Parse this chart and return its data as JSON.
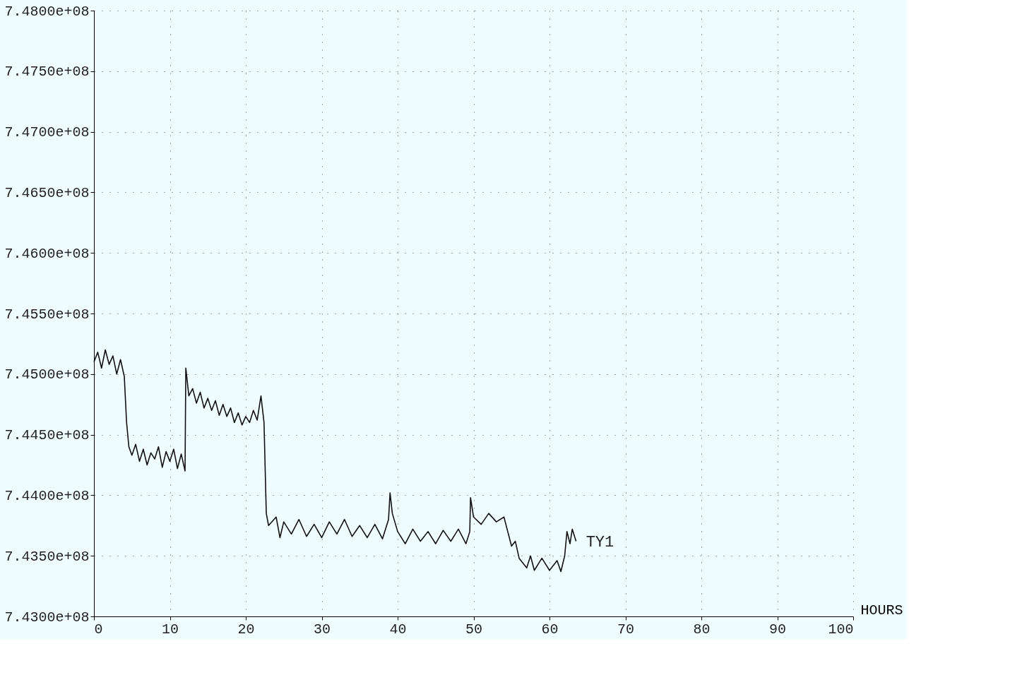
{
  "chart_data": {
    "type": "line",
    "xlabel": "HOURS",
    "xlim": [
      0,
      100
    ],
    "xticks": [
      0,
      10,
      20,
      30,
      40,
      50,
      60,
      70,
      80,
      90,
      100
    ],
    "ylim": [
      743000000,
      748000000
    ],
    "yticks": [
      {
        "value": 743000000,
        "label": "7.4300e+08"
      },
      {
        "value": 743500000,
        "label": "7.4350e+08"
      },
      {
        "value": 744000000,
        "label": "7.4400e+08"
      },
      {
        "value": 744500000,
        "label": "7.4450e+08"
      },
      {
        "value": 745000000,
        "label": "7.4500e+08"
      },
      {
        "value": 745500000,
        "label": "7.4550e+08"
      },
      {
        "value": 746000000,
        "label": "7.4600e+08"
      },
      {
        "value": 746500000,
        "label": "7.4650e+08"
      },
      {
        "value": 747000000,
        "label": "7.4700e+08"
      },
      {
        "value": 747500000,
        "label": "7.4750e+08"
      },
      {
        "value": 748000000,
        "label": "7.4800e+08"
      }
    ],
    "grid": true,
    "line_style": "solid",
    "marker": "none",
    "series": [
      {
        "name": "TY1",
        "color": "#111111",
        "x": [
          0,
          0.5,
          1,
          1.5,
          2,
          2.5,
          3,
          3.5,
          4,
          4.3,
          4.6,
          5,
          5.5,
          6,
          6.5,
          7,
          7.5,
          8,
          8.5,
          9,
          9.5,
          10,
          10.5,
          11,
          11.5,
          12,
          12.1,
          12.5,
          13,
          13.5,
          14,
          14.5,
          15,
          15.5,
          16,
          16.5,
          17,
          17.5,
          18,
          18.5,
          19,
          19.5,
          20,
          20.5,
          21,
          21.5,
          22,
          22.4,
          22.7,
          23,
          24,
          24.5,
          25,
          26,
          27,
          28,
          29,
          30,
          31,
          32,
          33,
          34,
          35,
          36,
          37,
          38,
          38.8,
          39,
          39.3,
          40,
          41,
          42,
          43,
          44,
          45,
          46,
          47,
          48,
          49,
          49.5,
          49.6,
          50,
          51,
          52,
          53,
          54,
          54.5,
          55,
          55.5,
          56,
          57,
          57.5,
          58,
          59,
          60,
          61,
          61.5,
          62,
          62.3,
          62.7,
          63,
          63.5
        ],
        "values": [
          745100000,
          745180000,
          745050000,
          745200000,
          745080000,
          745150000,
          745000000,
          745120000,
          744980000,
          744600000,
          744400000,
          744330000,
          744420000,
          744280000,
          744380000,
          744250000,
          744350000,
          744300000,
          744400000,
          744230000,
          744360000,
          744280000,
          744380000,
          744220000,
          744340000,
          744200000,
          745050000,
          744820000,
          744880000,
          744760000,
          744850000,
          744720000,
          744800000,
          744700000,
          744780000,
          744660000,
          744750000,
          744650000,
          744720000,
          744600000,
          744680000,
          744580000,
          744650000,
          744600000,
          744700000,
          744620000,
          744820000,
          744600000,
          743850000,
          743750000,
          743820000,
          743650000,
          743780000,
          743680000,
          743800000,
          743660000,
          743760000,
          743650000,
          743780000,
          743680000,
          743800000,
          743660000,
          743750000,
          743650000,
          743760000,
          743640000,
          743800000,
          744020000,
          743850000,
          743700000,
          743600000,
          743720000,
          743620000,
          743700000,
          743600000,
          743710000,
          743620000,
          743720000,
          743600000,
          743700000,
          743980000,
          743820000,
          743760000,
          743850000,
          743780000,
          743820000,
          743700000,
          743580000,
          743620000,
          743480000,
          743400000,
          743500000,
          743380000,
          743480000,
          743380000,
          743460000,
          743370000,
          743500000,
          743700000,
          743600000,
          743720000,
          743620000
        ]
      }
    ]
  }
}
